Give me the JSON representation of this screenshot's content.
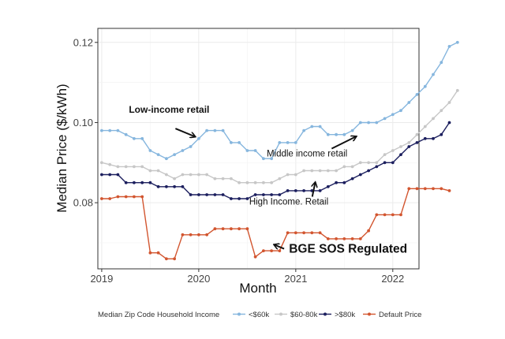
{
  "chart_data": {
    "type": "line",
    "title": "",
    "xlabel": "Month",
    "ylabel": "Median Price ($/kWh)",
    "xlim": [
      2018.96,
      2022.27
    ],
    "ylim": [
      0.0635,
      0.1235
    ],
    "xticks": [
      2019,
      2020,
      2021,
      2022
    ],
    "xtick_labels": [
      "2019",
      "2020",
      "2021",
      "2022"
    ],
    "yticks": [
      0.08,
      0.1,
      0.12
    ],
    "ytick_labels": [
      "0.08",
      "0.10",
      "0.12"
    ],
    "grid": true,
    "legend_title": "Median Zip Code Household Income",
    "legend_position": "bottom",
    "x_start": 2019.0,
    "x_step_months": 1,
    "series": [
      {
        "name": "<$60k",
        "color": "#86b6de",
        "values": [
          0.098,
          0.098,
          0.098,
          0.097,
          0.096,
          0.096,
          0.093,
          0.092,
          0.091,
          0.092,
          0.093,
          0.094,
          0.096,
          0.098,
          0.098,
          0.098,
          0.095,
          0.095,
          0.093,
          0.093,
          0.091,
          0.091,
          0.095,
          0.095,
          0.095,
          0.098,
          0.099,
          0.099,
          0.097,
          0.097,
          0.097,
          0.098,
          0.1,
          0.1,
          0.1,
          0.101,
          0.102,
          0.103,
          0.105,
          0.107,
          0.109,
          0.112,
          0.115,
          0.119,
          0.12
        ]
      },
      {
        "name": "$60-80k",
        "color": "#c7c7c7",
        "values": [
          0.09,
          0.0895,
          0.089,
          0.089,
          0.089,
          0.089,
          0.088,
          0.088,
          0.087,
          0.086,
          0.087,
          0.087,
          0.087,
          0.087,
          0.086,
          0.086,
          0.086,
          0.085,
          0.085,
          0.085,
          0.085,
          0.085,
          0.086,
          0.087,
          0.087,
          0.088,
          0.088,
          0.088,
          0.088,
          0.088,
          0.089,
          0.089,
          0.09,
          0.09,
          0.09,
          0.092,
          0.093,
          0.094,
          0.095,
          0.097,
          0.099,
          0.101,
          0.103,
          0.105,
          0.108
        ]
      },
      {
        "name": ">$80k",
        "color": "#1c1f5e",
        "values": [
          0.087,
          0.087,
          0.087,
          0.085,
          0.085,
          0.085,
          0.085,
          0.084,
          0.084,
          0.084,
          0.084,
          0.082,
          0.082,
          0.082,
          0.082,
          0.082,
          0.081,
          0.081,
          0.081,
          0.082,
          0.082,
          0.082,
          0.082,
          0.083,
          0.083,
          0.083,
          0.083,
          0.083,
          0.084,
          0.085,
          0.085,
          0.086,
          0.087,
          0.088,
          0.089,
          0.09,
          0.09,
          0.092,
          0.094,
          0.095,
          0.096,
          0.096,
          0.097,
          0.1
        ]
      },
      {
        "name": "Default Price",
        "color": "#d2552f",
        "values": [
          0.081,
          0.081,
          0.0815,
          0.0815,
          0.0815,
          0.0815,
          0.0675,
          0.0675,
          0.066,
          0.066,
          0.072,
          0.072,
          0.072,
          0.072,
          0.0735,
          0.0735,
          0.0735,
          0.0735,
          0.0735,
          0.0665,
          0.068,
          0.068,
          0.068,
          0.0725,
          0.0725,
          0.0725,
          0.0725,
          0.0725,
          0.071,
          0.071,
          0.071,
          0.071,
          0.071,
          0.073,
          0.077,
          0.077,
          0.077,
          0.077,
          0.0835,
          0.0835,
          0.0835,
          0.0835,
          0.0835,
          0.083
        ]
      }
    ],
    "annotations": [
      {
        "text": "Low-income retail",
        "style": "bold",
        "x": 2019.28,
        "y": 0.1025,
        "arrow_to": [
          2019.96,
          0.0965
        ],
        "arrow_from": [
          2019.76,
          0.0985
        ]
      },
      {
        "text": "Middle income retail",
        "style": "normal",
        "x": 2020.7,
        "y": 0.0915,
        "arrow_to": [
          2021.62,
          0.0965
        ],
        "arrow_from": [
          2021.37,
          0.0935
        ]
      },
      {
        "text": "High Income. Retail",
        "style": "normal",
        "x": 2020.52,
        "y": 0.0795,
        "arrow_to": [
          2021.2,
          0.085
        ],
        "arrow_from": [
          2021.17,
          0.0815
        ]
      },
      {
        "text": "BGE SOS Regulated",
        "style": "big",
        "x": 2020.93,
        "y": 0.0675,
        "arrow_to": [
          2020.78,
          0.0695
        ],
        "arrow_from": [
          2020.88,
          0.0685
        ]
      }
    ]
  }
}
